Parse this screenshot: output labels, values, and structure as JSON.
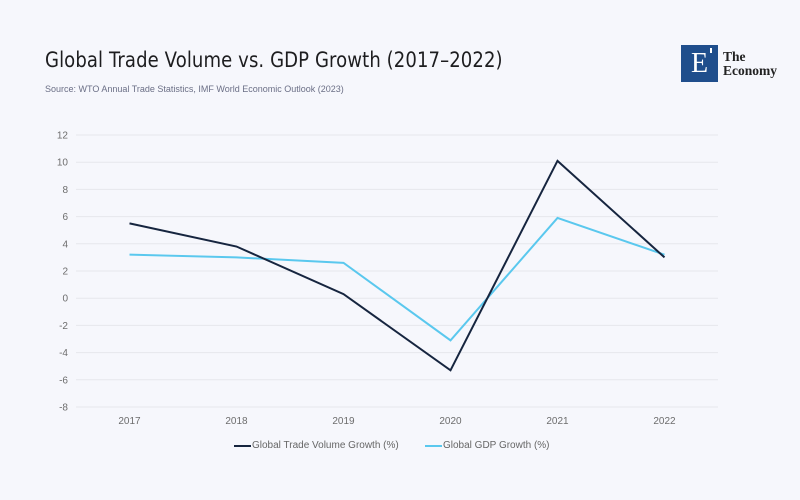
{
  "header": {
    "title": "Global Trade Volume vs. GDP Growth (2017–2022)",
    "source": "Source: WTO Annual Trade Statistics, IMF World Economic Outlook (2023)"
  },
  "logo": {
    "mark": "E",
    "line1": "The",
    "line2": "Economy",
    "color": "#1f4e8c"
  },
  "chart_data": {
    "type": "line",
    "title": "Global Trade Volume vs. GDP Growth (2017–2022)",
    "xlabel": "",
    "ylabel": "",
    "categories": [
      "2017",
      "2018",
      "2019",
      "2020",
      "2021",
      "2022"
    ],
    "series": [
      {
        "name": "Global Trade Volume Growth (%)",
        "color": "#16253f",
        "values": [
          5.5,
          3.8,
          0.3,
          -5.3,
          10.1,
          3.0
        ]
      },
      {
        "name": "Global GDP Growth (%)",
        "color": "#5ac8ee",
        "values": [
          3.2,
          3.0,
          2.6,
          -3.1,
          5.9,
          3.2
        ]
      }
    ],
    "ylim": [
      -8,
      12
    ],
    "yticks": [
      12,
      10,
      8,
      6,
      4,
      2,
      0,
      -2,
      -4,
      -6,
      -8
    ],
    "grid": true,
    "legend_position": "bottom"
  }
}
